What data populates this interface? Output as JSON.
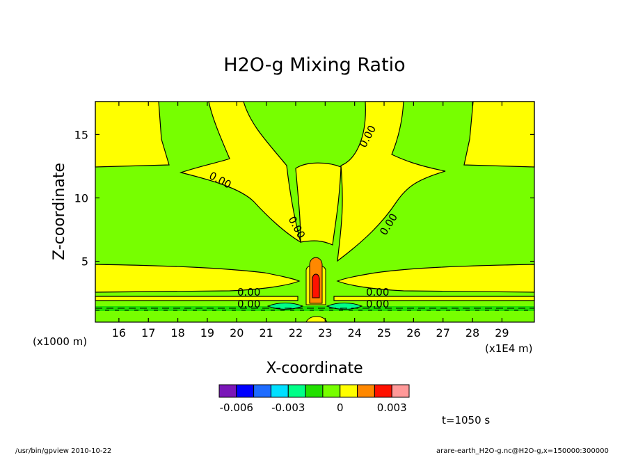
{
  "chart_data": {
    "type": "contour",
    "title": "H2O-g Mixing Ratio",
    "xlabel": "X-coordinate",
    "ylabel": "Z-coordinate",
    "x_unit": "(x1E4 m)",
    "y_unit": "(x1000 m)",
    "xlim": [
      15.2,
      30.1
    ],
    "ylim": [
      0.2,
      17.6
    ],
    "xticks": [
      "16",
      "17",
      "18",
      "19",
      "20",
      "21",
      "22",
      "23",
      "24",
      "25",
      "26",
      "27",
      "28",
      "29"
    ],
    "yticks": [
      "5",
      "10",
      "15"
    ],
    "contour_labels": [
      "0.00",
      "0.00",
      "0.00",
      "0.00",
      "0.00",
      "0.00",
      "0.00",
      "0.00"
    ],
    "colorbar": {
      "colors": [
        "#7a16b8",
        "#0000ff",
        "#1e6cff",
        "#00e0ff",
        "#00ff88",
        "#22e000",
        "#77ff00",
        "#ffff00",
        "#ff8800",
        "#ff1100",
        "#ff9999"
      ],
      "tick_labels": [
        "-0.006",
        "-0.003",
        "0",
        "0.003"
      ]
    },
    "time_label": "t=1050 s"
  },
  "footer": {
    "left": "/usr/bin/gpview  2010-10-22",
    "right": "arare-earth_H2O-g.nc@H2O-g,x=150000:300000"
  }
}
